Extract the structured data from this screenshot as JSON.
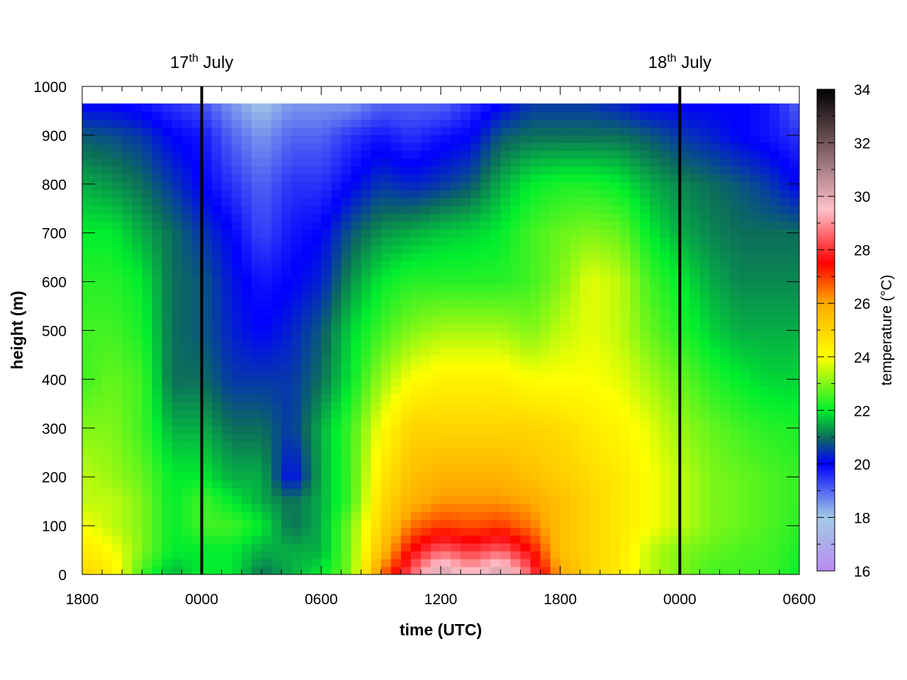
{
  "chart_data": {
    "type": "heatmap",
    "title": "",
    "xlabel": "time (UTC)",
    "ylabel": "height (m)",
    "colorbar_label": "temperature (°C)",
    "xlim_hours": [
      0,
      36
    ],
    "ylim": [
      0,
      1000
    ],
    "data_top_height": 965,
    "x_ticks": [
      {
        "hours": 0,
        "label": "1800"
      },
      {
        "hours": 6,
        "label": "0000"
      },
      {
        "hours": 12,
        "label": "0600"
      },
      {
        "hours": 18,
        "label": "1200"
      },
      {
        "hours": 24,
        "label": "1800"
      },
      {
        "hours": 30,
        "label": "0000"
      },
      {
        "hours": 36,
        "label": "0600"
      }
    ],
    "y_ticks": [
      0,
      100,
      200,
      300,
      400,
      500,
      600,
      700,
      800,
      900,
      1000
    ],
    "colorbar_range": [
      16,
      34
    ],
    "colorbar_ticks": [
      16,
      18,
      20,
      22,
      24,
      26,
      28,
      30,
      32,
      34
    ],
    "colormap": [
      [
        16,
        "#b88cf2"
      ],
      [
        18,
        "#a4cbe6"
      ],
      [
        20,
        "#0000ff"
      ],
      [
        21,
        "#0c6e5a"
      ],
      [
        22,
        "#00ee2e"
      ],
      [
        24,
        "#ffff00"
      ],
      [
        26,
        "#ffaa00"
      ],
      [
        27.5,
        "#ff0000"
      ],
      [
        29.5,
        "#ffc0cb"
      ],
      [
        34,
        "#000000"
      ]
    ],
    "date_markers": [
      {
        "hours": 6,
        "label": "17",
        "sup": "th",
        "suffix": " July"
      },
      {
        "hours": 30,
        "label": "18",
        "sup": "th",
        "suffix": " July"
      }
    ],
    "temperature_field": {
      "time_hours": [
        0,
        1.5,
        3,
        4.5,
        6,
        7.5,
        9,
        10.5,
        12,
        13.5,
        15,
        16.5,
        18,
        19.5,
        21,
        22.5,
        24,
        25.5,
        27,
        28.5,
        30,
        31.5,
        33,
        34.5,
        36
      ],
      "heights_m": [
        0,
        50,
        100,
        150,
        200,
        300,
        400,
        500,
        600,
        700,
        800,
        900,
        965
      ],
      "values": [
        [
          25.0,
          24.5,
          22.5,
          21.5,
          22.0,
          22.0,
          21.0,
          21.5,
          22.0,
          23.0,
          26.5,
          28.5,
          30.5,
          29.5,
          30.5,
          28.5,
          26.0,
          25.0,
          24.5,
          23.5,
          23.0,
          22.5,
          22.5,
          22.5,
          22.0
        ],
        [
          24.5,
          24.0,
          23.0,
          22.0,
          22.0,
          22.0,
          21.5,
          21.5,
          21.5,
          23.0,
          25.5,
          27.5,
          28.5,
          28.0,
          28.5,
          27.5,
          25.5,
          25.0,
          24.5,
          23.5,
          23.0,
          22.8,
          22.6,
          22.5,
          22.2
        ],
        [
          24.0,
          23.5,
          23.0,
          22.0,
          22.5,
          22.5,
          22.0,
          21.0,
          21.5,
          23.0,
          25.0,
          26.5,
          27.0,
          26.8,
          27.0,
          26.5,
          25.5,
          25.0,
          24.5,
          24.0,
          23.5,
          23.0,
          22.8,
          22.6,
          22.3
        ],
        [
          23.5,
          23.5,
          23.0,
          22.0,
          22.5,
          22.0,
          21.5,
          21.0,
          21.5,
          22.5,
          24.8,
          25.8,
          26.2,
          26.2,
          26.2,
          26.0,
          25.5,
          25.0,
          24.5,
          24.0,
          23.5,
          23.0,
          22.8,
          22.6,
          22.4
        ],
        [
          23.5,
          23.2,
          22.8,
          22.0,
          22.0,
          21.5,
          21.5,
          20.0,
          21.5,
          22.5,
          24.5,
          25.5,
          25.8,
          25.8,
          25.8,
          25.5,
          25.2,
          24.8,
          24.5,
          24.0,
          23.5,
          23.0,
          22.8,
          22.6,
          22.4
        ],
        [
          23.0,
          23.0,
          22.5,
          21.5,
          21.5,
          21.0,
          21.0,
          20.5,
          21.5,
          22.5,
          24.0,
          25.0,
          25.0,
          25.0,
          25.0,
          25.0,
          24.8,
          24.5,
          24.2,
          23.8,
          23.2,
          22.8,
          22.5,
          22.3,
          22.2
        ],
        [
          22.5,
          22.8,
          22.5,
          21.0,
          21.0,
          20.5,
          20.5,
          20.5,
          21.0,
          22.0,
          23.2,
          24.0,
          24.3,
          24.3,
          24.3,
          24.0,
          24.0,
          24.0,
          23.8,
          23.3,
          22.8,
          22.3,
          22.0,
          21.8,
          21.8
        ],
        [
          22.5,
          22.5,
          22.2,
          21.0,
          20.8,
          20.3,
          20.0,
          20.3,
          20.8,
          21.8,
          22.5,
          23.0,
          23.3,
          23.3,
          23.3,
          23.0,
          23.5,
          23.8,
          23.5,
          22.8,
          22.3,
          21.8,
          21.5,
          21.5,
          21.5
        ],
        [
          22.3,
          22.3,
          22.0,
          21.0,
          20.8,
          20.2,
          19.8,
          20.0,
          20.3,
          21.3,
          22.0,
          22.3,
          22.3,
          22.3,
          22.3,
          22.5,
          23.0,
          23.8,
          23.5,
          22.5,
          22.0,
          21.5,
          21.2,
          21.2,
          21.2
        ],
        [
          22.0,
          22.0,
          21.5,
          21.0,
          20.5,
          20.0,
          19.3,
          19.8,
          20.0,
          20.8,
          21.3,
          21.5,
          21.7,
          21.8,
          22.0,
          22.5,
          22.8,
          23.0,
          22.8,
          22.0,
          21.5,
          21.2,
          21.0,
          21.0,
          21.0
        ],
        [
          21.5,
          21.3,
          21.0,
          20.5,
          20.0,
          19.5,
          19.0,
          19.5,
          19.5,
          20.0,
          20.5,
          20.3,
          20.5,
          20.8,
          21.5,
          22.0,
          22.2,
          22.2,
          22.0,
          21.5,
          21.2,
          21.0,
          20.8,
          20.5,
          20.0
        ],
        [
          20.8,
          20.7,
          20.5,
          20.0,
          19.8,
          19.0,
          18.5,
          19.0,
          19.0,
          19.5,
          19.8,
          19.5,
          19.8,
          20.0,
          20.8,
          21.0,
          21.0,
          21.0,
          21.0,
          20.8,
          20.5,
          20.3,
          20.0,
          19.8,
          19.5
        ],
        [
          20.0,
          20.0,
          19.8,
          19.5,
          19.2,
          18.5,
          18.0,
          18.5,
          18.5,
          18.5,
          19.0,
          19.0,
          19.0,
          19.5,
          20.0,
          20.5,
          20.5,
          20.5,
          20.3,
          20.0,
          20.0,
          20.0,
          20.0,
          19.8,
          19.0
        ]
      ]
    }
  }
}
